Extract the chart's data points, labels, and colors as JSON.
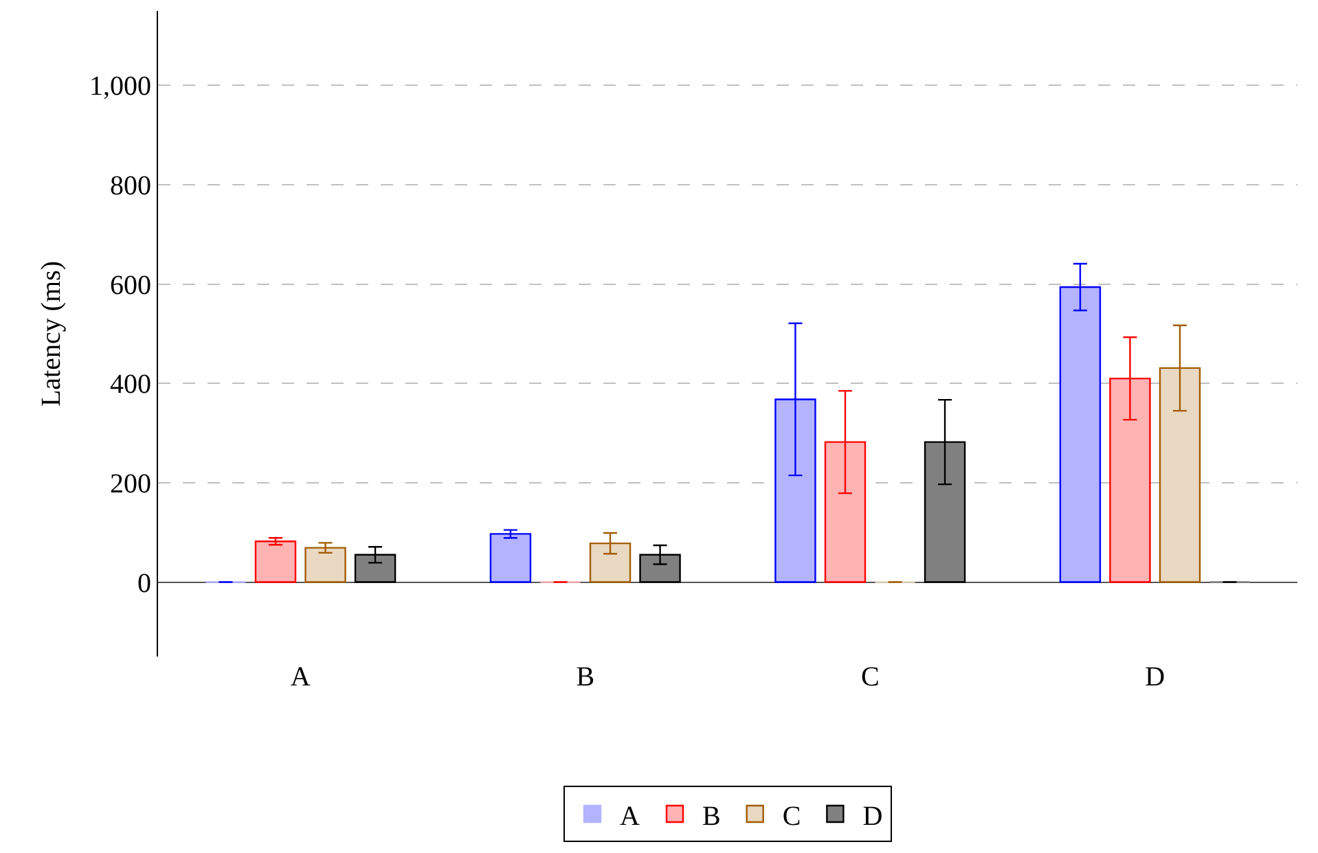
{
  "chart_data": {
    "type": "bar",
    "ylabel": "Latency (ms)",
    "categories": [
      "A",
      "B",
      "C",
      "D"
    ],
    "series": [
      {
        "name": "A",
        "color": "#b3b3ff",
        "values": [
          0,
          97,
          368,
          594
        ],
        "errors": [
          null,
          8,
          153,
          47
        ]
      },
      {
        "name": "B",
        "color": "#ffb3b3",
        "values": [
          82,
          0,
          282,
          410
        ],
        "errors": [
          7,
          null,
          103,
          83
        ]
      },
      {
        "name": "C",
        "color": "#e9d8c2",
        "values": [
          69,
          78,
          0,
          431
        ],
        "errors": [
          10,
          21,
          null,
          86
        ]
      },
      {
        "name": "D",
        "color": "#808080",
        "values": [
          55,
          55,
          282,
          0
        ],
        "errors": [
          16,
          19,
          85,
          null
        ]
      }
    ],
    "ylim": [
      -150,
      1150
    ],
    "yticks": [
      0,
      200,
      400,
      600,
      800,
      {
        "value": 1000,
        "label": "1,000"
      }
    ],
    "grid": "y",
    "legend": "bottom"
  }
}
